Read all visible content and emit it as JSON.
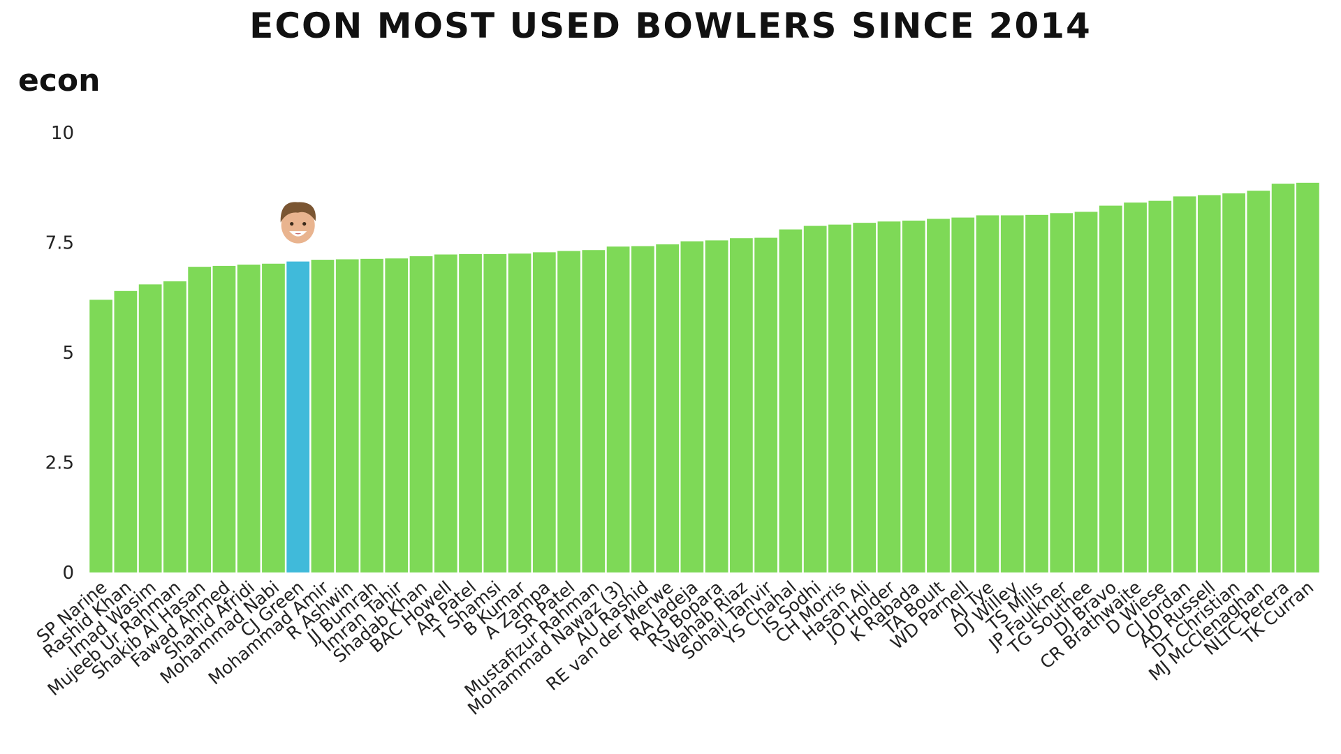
{
  "chart_data": {
    "type": "bar",
    "title": "ECON MOST USED BOWLERS SINCE 2014",
    "ylabel": "econ",
    "xlabel": "",
    "ylim": [
      0,
      10
    ],
    "yticks": [
      "0",
      "2.5",
      "5",
      "7.5",
      "10"
    ],
    "ytick_values": [
      0,
      2.5,
      5,
      7.5,
      10
    ],
    "grid": false,
    "bar_color": "#7ED957",
    "highlight_color": "#40BADA",
    "highlight": "CJ Green",
    "categories": [
      "SP Narine",
      "Rashid Khan",
      "Imad Wasim",
      "Mujeeb Ur Rahman",
      "Shakib Al Hasan",
      "Fawad Ahmed",
      "Shahid Afridi",
      "Mohammad Nabi",
      "CJ Green",
      "Mohammad Amir",
      "R Ashwin",
      "JJ Bumrah",
      "Imran Tahir",
      "Shadab Khan",
      "BAC Howell",
      "AR Patel",
      "T Shamsi",
      "B Kumar",
      "A Zampa",
      "SR Patel",
      "Mustafizur Rahman",
      "Mohammad Nawaz (3)",
      "AU Rashid",
      "RE van der Merwe",
      "RA Jadeja",
      "RS Bopara",
      "Wahab Riaz",
      "Sohail Tanvir",
      "YS Chahal",
      "IS Sodhi",
      "CH Morris",
      "Hasan Ali",
      "JO Holder",
      "K Rabada",
      "TA Boult",
      "WD Parnell",
      "AJ Tye",
      "DJ Willey",
      "TS Mills",
      "JP Faulkner",
      "TG Southee",
      "DJ Bravo",
      "CR Brathwaite",
      "D Wiese",
      "CJ Jordan",
      "AD Russell",
      "DT Christian",
      "MJ McClenaghan",
      "NLTC Perera",
      "TK Curran"
    ],
    "values": [
      6.2,
      6.4,
      6.55,
      6.62,
      6.95,
      6.97,
      7.0,
      7.02,
      7.07,
      7.11,
      7.12,
      7.13,
      7.14,
      7.19,
      7.23,
      7.24,
      7.24,
      7.25,
      7.28,
      7.31,
      7.33,
      7.41,
      7.42,
      7.46,
      7.53,
      7.55,
      7.6,
      7.61,
      7.8,
      7.88,
      7.91,
      7.95,
      7.98,
      8.0,
      8.04,
      8.07,
      8.12,
      8.12,
      8.13,
      8.17,
      8.2,
      8.34,
      8.41,
      8.45,
      8.55,
      8.58,
      8.62,
      8.68,
      8.84,
      8.86
    ]
  }
}
